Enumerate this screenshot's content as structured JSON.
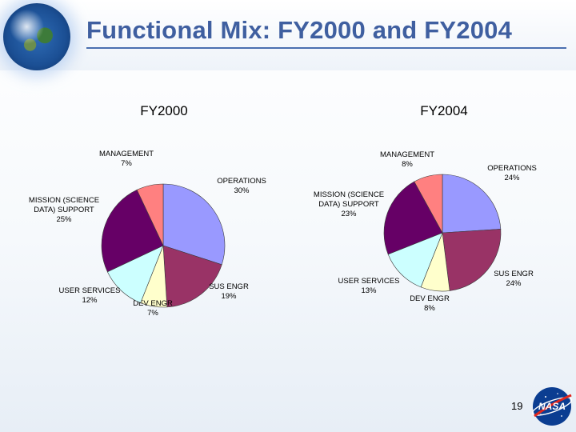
{
  "slide": {
    "title": "Functional Mix:  FY2000 and FY2004",
    "page_number": "19"
  },
  "colors": {
    "operations": "#9999ff",
    "sus_engr": "#993366",
    "dev_engr": "#ffffcc",
    "user_services": "#ccffff",
    "mission_support": "#660066",
    "management": "#ff8080",
    "title_blue": "#3f5fa0"
  },
  "icons": [
    "globe-icon",
    "nasa-logo-icon"
  ],
  "chart_data": [
    {
      "type": "pie",
      "title": "FY2000",
      "slices": [
        {
          "key": "operations",
          "line1": "OPERATIONS",
          "line2": "",
          "pct_text": "30%",
          "value": 30
        },
        {
          "key": "sus_engr",
          "line1": "SUS ENGR",
          "line2": "",
          "pct_text": "19%",
          "value": 19
        },
        {
          "key": "dev_engr",
          "line1": "DEV ENGR",
          "line2": "",
          "pct_text": "7%",
          "value": 7
        },
        {
          "key": "user_services",
          "line1": "USER SERVICES",
          "line2": "",
          "pct_text": "12%",
          "value": 12
        },
        {
          "key": "mission_support",
          "line1": "MISSION (SCIENCE",
          "line2": "DATA) SUPPORT",
          "pct_text": "25%",
          "value": 25
        },
        {
          "key": "management",
          "line1": "MANAGEMENT",
          "line2": "",
          "pct_text": "7%",
          "value": 7
        }
      ]
    },
    {
      "type": "pie",
      "title": "FY2004",
      "slices": [
        {
          "key": "operations",
          "line1": "OPERATIONS",
          "line2": "",
          "pct_text": "24%",
          "value": 24
        },
        {
          "key": "sus_engr",
          "line1": "SUS ENGR",
          "line2": "",
          "pct_text": "24%",
          "value": 24
        },
        {
          "key": "dev_engr",
          "line1": "DEV ENGR",
          "line2": "",
          "pct_text": "8%",
          "value": 8
        },
        {
          "key": "user_services",
          "line1": "USER SERVICES",
          "line2": "",
          "pct_text": "13%",
          "value": 13
        },
        {
          "key": "mission_support",
          "line1": "MISSION (SCIENCE",
          "line2": "DATA) SUPPORT",
          "pct_text": "23%",
          "value": 23
        },
        {
          "key": "management",
          "line1": "MANAGEMENT",
          "line2": "",
          "pct_text": "8%",
          "value": 8
        }
      ]
    }
  ]
}
